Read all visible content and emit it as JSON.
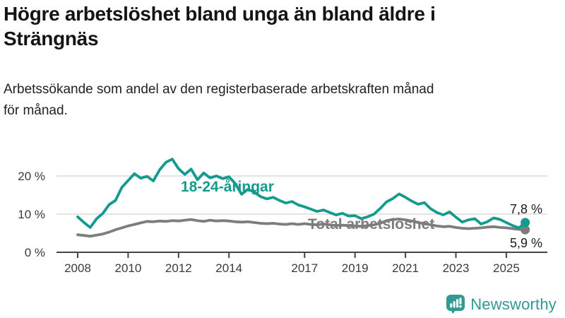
{
  "header": {
    "title_lines": [
      "Högre arbetslöshet bland unga än bland äldre i",
      "Strängnäs"
    ],
    "subtitle_lines": [
      "Arbetssökande som andel av den registerbaserade arbetskraften månad",
      "för månad."
    ]
  },
  "footer": {
    "brand": "Newsworthy"
  },
  "colors": {
    "accent_teal": "#149b8d",
    "line_gray": "#7d7d7d",
    "grid": "#dcdcdc",
    "axis": "#454545",
    "logo_teal": "#339a93"
  },
  "chart_data": {
    "type": "line",
    "title": "Högre arbetslöshet bland unga än bland äldre i Strängnäs",
    "subtitle": "Arbetssökande som andel av den registerbaserade arbetskraften månad för månad.",
    "xlabel": "",
    "ylabel": "",
    "units": "%",
    "grid": "horizontal",
    "legend_position": "inline-annotations",
    "x_start": 2008.0,
    "x_step": 0.25,
    "xlim": [
      2007.3,
      2026.6
    ],
    "ylim": [
      0,
      26
    ],
    "x_ticks": [
      2008,
      2010,
      2012,
      2014,
      2017,
      2019,
      2021,
      2023,
      2025
    ],
    "y_ticks": [
      {
        "value": 0,
        "label": "0 %"
      },
      {
        "value": 10,
        "label": "10 %"
      },
      {
        "value": 20,
        "label": "20 %"
      }
    ],
    "series": [
      {
        "name": "18-24-åringar",
        "color": "#149b8d",
        "end_label": "7,8 %",
        "end_value": 7.8,
        "values": [
          9.3,
          7.8,
          6.5,
          8.8,
          10.2,
          12.5,
          13.6,
          17.0,
          18.8,
          20.6,
          19.4,
          19.9,
          18.7,
          21.6,
          23.6,
          24.4,
          21.9,
          20.4,
          21.8,
          19.0,
          20.8,
          19.5,
          20.0,
          19.3,
          19.8,
          18.0,
          15.2,
          16.5,
          15.8,
          14.6,
          14.0,
          14.4,
          13.6,
          12.9,
          13.3,
          12.4,
          11.9,
          11.3,
          10.7,
          11.1,
          10.4,
          9.8,
          10.2,
          9.5,
          9.6,
          8.8,
          9.3,
          10.0,
          11.5,
          13.2,
          14.1,
          15.3,
          14.4,
          13.4,
          12.6,
          13.0,
          11.4,
          10.4,
          9.8,
          10.6,
          9.2,
          7.9,
          8.5,
          8.8,
          7.4,
          8.0,
          9.0,
          8.6,
          7.8,
          7.0,
          6.4,
          7.8
        ]
      },
      {
        "name": "Total arbetslöshet",
        "color": "#7d7d7d",
        "end_label": "5,9 %",
        "end_value": 5.9,
        "values": [
          4.6,
          4.4,
          4.2,
          4.5,
          4.8,
          5.3,
          5.9,
          6.4,
          6.9,
          7.3,
          7.7,
          8.1,
          8.0,
          8.2,
          8.1,
          8.3,
          8.2,
          8.4,
          8.6,
          8.3,
          8.1,
          8.4,
          8.2,
          8.3,
          8.2,
          8.0,
          7.9,
          8.0,
          7.8,
          7.6,
          7.5,
          7.6,
          7.4,
          7.3,
          7.5,
          7.3,
          7.5,
          7.3,
          7.2,
          7.4,
          7.2,
          7.0,
          7.1,
          7.0,
          6.9,
          6.8,
          7.0,
          7.2,
          7.6,
          8.3,
          8.6,
          8.7,
          8.5,
          8.2,
          7.8,
          7.5,
          7.2,
          6.9,
          6.7,
          6.8,
          6.5,
          6.3,
          6.2,
          6.3,
          6.4,
          6.6,
          6.7,
          6.5,
          6.4,
          6.2,
          6.0,
          5.9
        ]
      }
    ]
  }
}
